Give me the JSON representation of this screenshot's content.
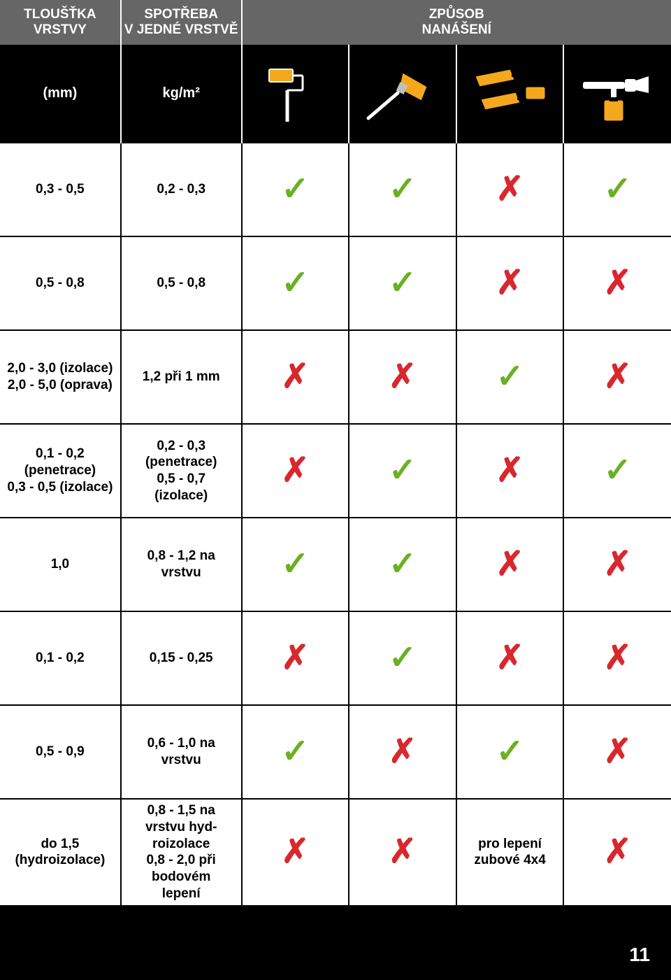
{
  "page_number": "11",
  "header": {
    "col1": "TLOUŠŤKA\nVRSTVY",
    "col2": "SPOTŘEBA\nV JEDNÉ VRSTVĚ",
    "col3": "ZPŮSOB\nNANÁŠENÍ"
  },
  "subheader": {
    "units_col1": "(mm)",
    "units_col2": "kg/m²",
    "icons": [
      "roller-icon",
      "brush-icon",
      "trowel-icon",
      "spraygun-icon"
    ]
  },
  "columns": {
    "text_col_width_pct": 18,
    "method_col_width_pct": 16
  },
  "colors": {
    "header_bg": "#666666",
    "subheader_bg": "#000000",
    "row_bg": "#ffffff",
    "border": "#000000",
    "yes": "#6ab023",
    "no": "#d9272e",
    "tool_yellow": "#f5a81c",
    "tool_black": "#000000",
    "tool_white": "#ffffff",
    "tool_gray": "#bfbfbf"
  },
  "marks": {
    "yes_glyph": "✓",
    "no_glyph": "✗"
  },
  "rows": [
    {
      "thickness": "0,3 - 0,5",
      "consumption": "0,2 - 0,3",
      "methods": [
        "yes",
        "yes",
        "no",
        "yes"
      ]
    },
    {
      "thickness": "0,5 - 0,8",
      "consumption": "0,5 - 0,8",
      "methods": [
        "yes",
        "yes",
        "no",
        "no"
      ]
    },
    {
      "thickness": "2,0 - 3,0 (izolace)\n2,0 - 5,0 (oprava)",
      "consumption": "1,2 při 1 mm",
      "methods": [
        "no",
        "no",
        "yes",
        "no"
      ]
    },
    {
      "thickness": "0,1 - 0,2\n(penetrace)\n0,3 - 0,5 (izolace)",
      "consumption": "0,2 - 0,3\n(penetrace)\n0,5 - 0,7\n(izolace)",
      "methods": [
        "no",
        "yes",
        "no",
        "yes"
      ]
    },
    {
      "thickness": "1,0",
      "consumption": "0,8 - 1,2 na\nvrstvu",
      "methods": [
        "yes",
        "yes",
        "no",
        "no"
      ]
    },
    {
      "thickness": "0,1 - 0,2",
      "consumption": "0,15 - 0,25",
      "methods": [
        "no",
        "yes",
        "no",
        "no"
      ]
    },
    {
      "thickness": "0,5 - 0,9",
      "consumption": "0,6 - 1,0 na\nvrstvu",
      "methods": [
        "yes",
        "no",
        "yes",
        "no"
      ]
    },
    {
      "thickness": "do 1,5\n(hydroizolace)",
      "consumption": "0,8 - 1,5 na\nvrstvu hyd-\nroizolace\n0,8 - 2,0 při\nbodovém\nlepení",
      "methods": [
        "no",
        "no",
        "text:pro lepení\nzubové 4x4",
        "no"
      ]
    }
  ],
  "fonts": {
    "header_size": 19,
    "cell_size": 19,
    "mark_size": 48,
    "pagefoot_size": 28
  }
}
